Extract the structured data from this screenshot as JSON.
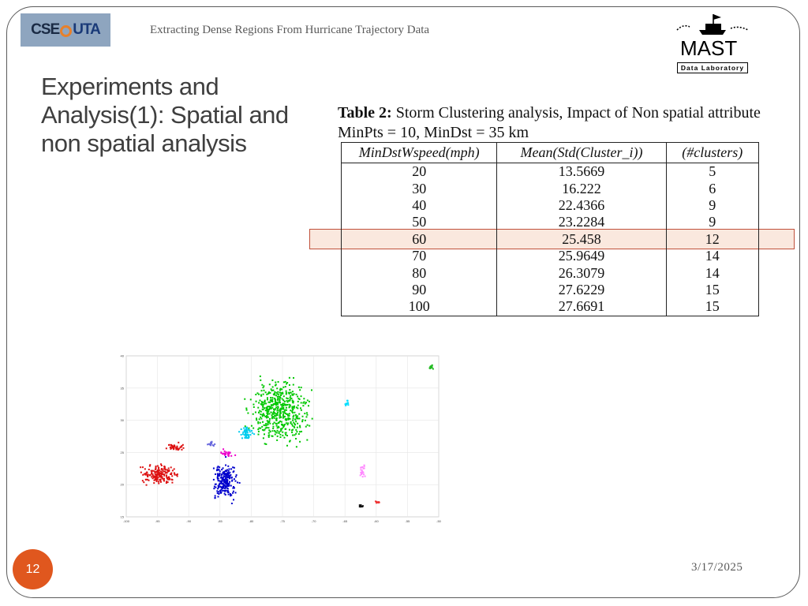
{
  "header": {
    "logo_cse": "CSE",
    "logo_uta": "UTA",
    "title": "Extracting Dense Regions From Hurricane Trajectory Data",
    "lab_logo_word": "MAST",
    "lab_logo_sub": "Data Laboratory"
  },
  "slide": {
    "title": "Experiments and Analysis(1): Spatial and non spatial analysis",
    "page_number": "12",
    "date": "3/17/2025"
  },
  "table": {
    "caption_label": "Table 2:",
    "caption_text": "Storm Clustering analysis, Impact of Non spatial attribute MinPts = 10, MinDst = 35 km",
    "headers": [
      "MinDstWspeed(mph)",
      "Mean(Std(Cluster_i))",
      "(#clusters)"
    ],
    "rows": [
      [
        "20",
        "13.5669",
        "5"
      ],
      [
        "30",
        "16.222",
        "6"
      ],
      [
        "40",
        "22.4366",
        "9"
      ],
      [
        "50",
        "23.2284",
        "9"
      ],
      [
        "60",
        "25.458",
        "12"
      ],
      [
        "70",
        "25.9649",
        "14"
      ],
      [
        "80",
        "26.3079",
        "14"
      ],
      [
        "90",
        "27.6229",
        "15"
      ],
      [
        "100",
        "27.6691",
        "15"
      ]
    ],
    "highlighted_row": 4,
    "highlight_color": "#c0503a"
  },
  "chart_data": {
    "type": "scatter",
    "xlim": [
      -100,
      -50
    ],
    "ylim": [
      15,
      40
    ],
    "x_ticks": [
      "-100",
      "-95",
      "-90",
      "-85",
      "-80",
      "-75",
      "-70",
      "-65",
      "-60",
      "-55",
      "-50"
    ],
    "y_ticks": [
      "15",
      "20",
      "25",
      "30",
      "35",
      "40"
    ],
    "grid": true,
    "clusters": [
      {
        "color": "#00c800",
        "center": [
          -75.5,
          31.3
        ],
        "spread": [
          4.2,
          4.3
        ],
        "points": 520
      },
      {
        "color": "#0000cc",
        "center": [
          -84.2,
          20.5
        ],
        "spread": [
          1.8,
          2.6
        ],
        "points": 210
      },
      {
        "color": "#dd1111",
        "center": [
          -94.5,
          21.6
        ],
        "spread": [
          2.6,
          1.3
        ],
        "points": 180
      },
      {
        "color": "#dd1111",
        "center": [
          -92.4,
          25.8
        ],
        "spread": [
          1.6,
          0.6
        ],
        "points": 40
      },
      {
        "color": "#00ccee",
        "center": [
          -80.8,
          28.0
        ],
        "spread": [
          0.9,
          0.9
        ],
        "points": 50
      },
      {
        "color": "#ee00cc",
        "center": [
          -84.0,
          24.8
        ],
        "spread": [
          1.3,
          0.5
        ],
        "points": 30
      },
      {
        "color": "#6666dd",
        "center": [
          -86.3,
          26.3
        ],
        "spread": [
          0.5,
          0.4
        ],
        "points": 14
      },
      {
        "color": "#ff88ff",
        "center": [
          -62.2,
          22.2
        ],
        "spread": [
          0.4,
          1.0
        ],
        "points": 22
      },
      {
        "color": "#00ddff",
        "center": [
          -64.7,
          32.7
        ],
        "spread": [
          0.3,
          0.4
        ],
        "points": 10
      },
      {
        "color": "#22bb22",
        "center": [
          -51.2,
          38.3
        ],
        "spread": [
          0.4,
          0.3
        ],
        "points": 14
      },
      {
        "color": "#111111",
        "center": [
          -62.5,
          16.7
        ],
        "spread": [
          0.4,
          0.3
        ],
        "points": 10
      },
      {
        "color": "#ee3333",
        "center": [
          -59.8,
          17.3
        ],
        "spread": [
          0.4,
          0.2
        ],
        "points": 10
      }
    ]
  }
}
